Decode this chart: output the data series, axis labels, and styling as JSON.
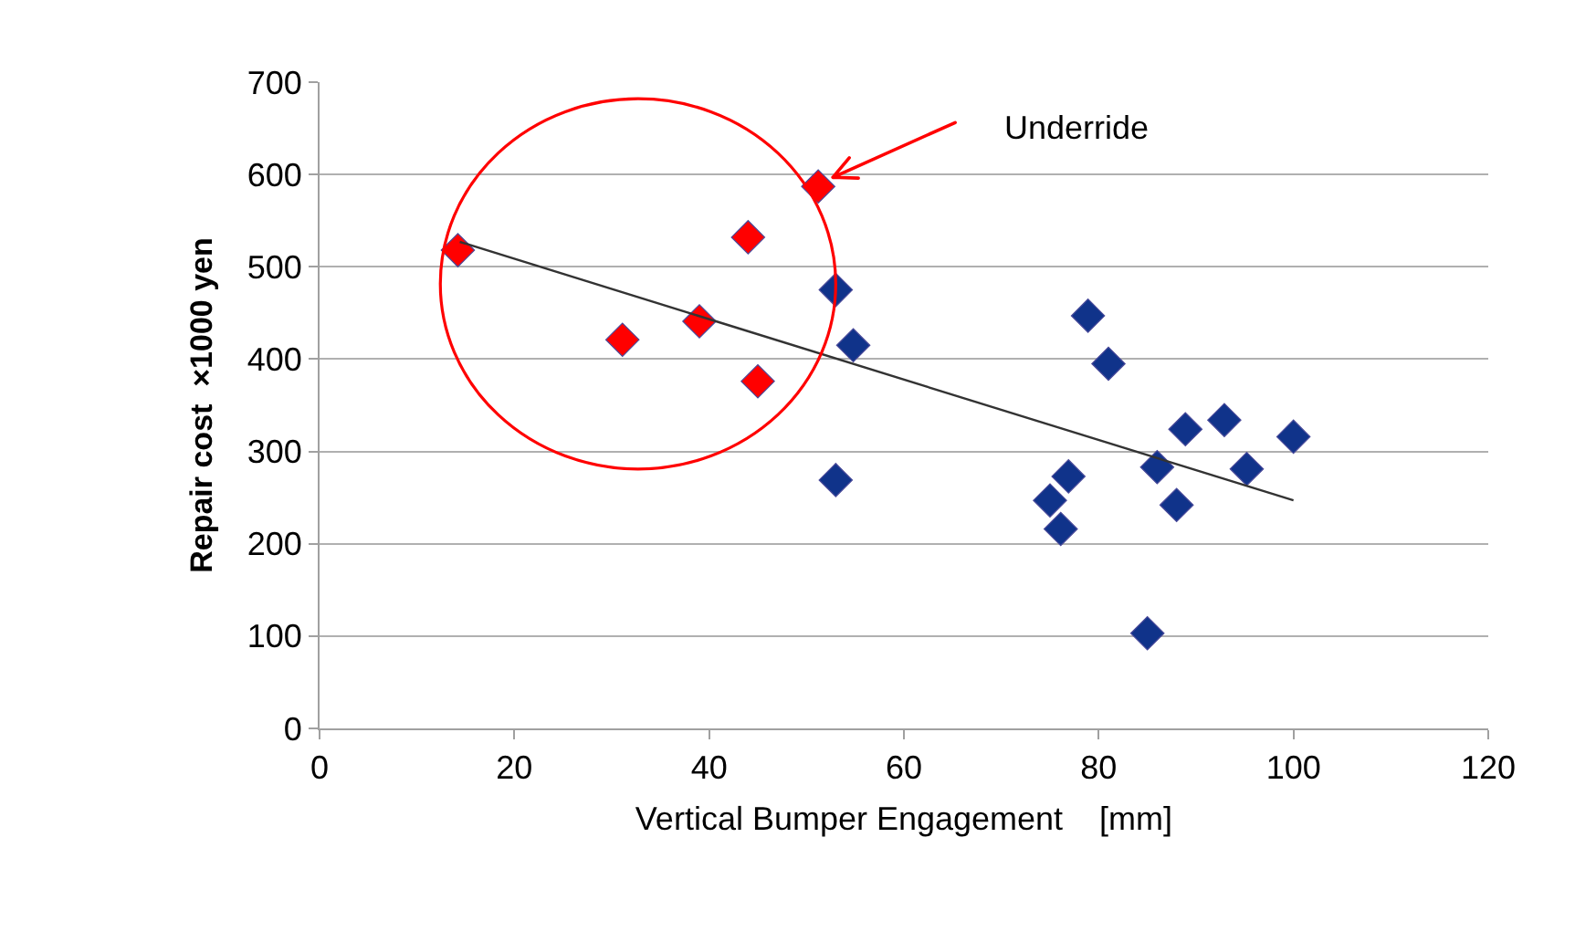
{
  "chart_data": {
    "type": "scatter",
    "xlabel": "Vertical Bumper Engagement    [mm]",
    "ylabel": "Repair cost  ×1000 yen",
    "xlim": [
      0,
      120
    ],
    "xticks": [
      0,
      20,
      40,
      60,
      80,
      100,
      120
    ],
    "ylim": [
      0,
      700
    ],
    "yticks": [
      0,
      100,
      200,
      300,
      400,
      500,
      600,
      700
    ],
    "grid": "y",
    "marker": "diamond",
    "series": [
      {
        "color": "#ff0000",
        "x": [
          14.2,
          31.1,
          39,
          44,
          45,
          51.2
        ],
        "values": [
          518,
          421,
          441,
          532,
          376,
          587
        ]
      },
      {
        "color": "#10338a",
        "x": [
          53,
          54.8,
          53,
          78.9,
          81,
          76.9,
          75,
          76.1,
          88.9,
          92.9,
          100,
          86,
          95.2,
          88,
          85
        ],
        "values": [
          475,
          415,
          269,
          447,
          395,
          273,
          247,
          216,
          324,
          334,
          316,
          283,
          281,
          242,
          103
        ]
      },
      {
        "type": "line",
        "color": "#333333",
        "marker": "none",
        "x": [
          14.4,
          100
        ],
        "values": [
          527,
          247
        ]
      }
    ],
    "annotations": [
      "Underride"
    ]
  }
}
